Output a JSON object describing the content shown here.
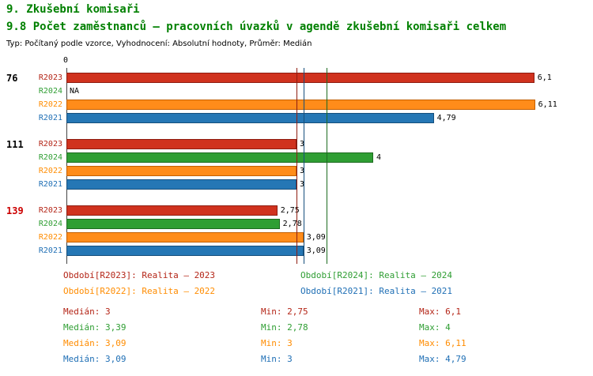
{
  "page": {
    "title": "9. Zkušební komisaři",
    "subtitle": "9.8 Počet zaměstnanců – pracovních úvazků v agendě zkušební komisaři celkem",
    "meta": "Typ: Počítaný podle vzorce, Vyhodnocení: Absolutní hodnoty, Průměr: Medián"
  },
  "colors": {
    "R2023": {
      "fill": "#d0321e",
      "border": "#8e1c10",
      "text": "#b42517"
    },
    "R2024": {
      "fill": "#2f9e33",
      "border": "#1d6b20",
      "text": "#2f9e33"
    },
    "R2022": {
      "fill": "#ff8c1a",
      "border": "#c45f00",
      "text": "#ff8c00"
    },
    "R2021": {
      "fill": "#2577b5",
      "border": "#164f7c",
      "text": "#1f6fb5"
    }
  },
  "chart_data": {
    "type": "bar",
    "orientation": "horizontal",
    "title": "9.8 Počet zaměstnanců – pracovních úvazků v agendě zkušební komisaři celkem",
    "xlim": [
      0,
      6.7
    ],
    "axis_zero_label": "0",
    "series_order": [
      "R2023",
      "R2024",
      "R2022",
      "R2021"
    ],
    "groups": [
      {
        "label": "76",
        "label_color": "#000000",
        "bars": [
          {
            "series": "R2023",
            "value": 6.1,
            "display": "6,1"
          },
          {
            "series": "R2024",
            "value": null,
            "display": "NA"
          },
          {
            "series": "R2022",
            "value": 6.11,
            "display": "6,11"
          },
          {
            "series": "R2021",
            "value": 4.79,
            "display": "4,79"
          }
        ]
      },
      {
        "label": "111",
        "label_color": "#000000",
        "bars": [
          {
            "series": "R2023",
            "value": 3,
            "display": "3"
          },
          {
            "series": "R2024",
            "value": 4,
            "display": "4"
          },
          {
            "series": "R2022",
            "value": 3,
            "display": "3"
          },
          {
            "series": "R2021",
            "value": 3,
            "display": "3"
          }
        ]
      },
      {
        "label": "139",
        "label_color": "#cc0000",
        "bars": [
          {
            "series": "R2023",
            "value": 2.75,
            "display": "2,75"
          },
          {
            "series": "R2024",
            "value": 2.78,
            "display": "2,78"
          },
          {
            "series": "R2022",
            "value": 3.09,
            "display": "3,09"
          },
          {
            "series": "R2021",
            "value": 3.09,
            "display": "3,09"
          }
        ]
      }
    ],
    "medians": [
      {
        "series": "R2023",
        "value": 3
      },
      {
        "series": "R2024",
        "value": 3.39
      },
      {
        "series": "R2022",
        "value": 3.09
      },
      {
        "series": "R2021",
        "value": 3.09
      }
    ],
    "legend": [
      {
        "series": "R2023",
        "label": "Období[R2023]: Realita – 2023",
        "col": 0,
        "row": 0
      },
      {
        "series": "R2024",
        "label": "Období[R2024]: Realita – 2024",
        "col": 1,
        "row": 0
      },
      {
        "series": "R2022",
        "label": "Období[R2022]: Realita – 2022",
        "col": 0,
        "row": 1
      },
      {
        "series": "R2021",
        "label": "Období[R2021]: Realita – 2021",
        "col": 1,
        "row": 1
      }
    ],
    "stats": [
      {
        "series": "R2023",
        "median": "Medián: 3",
        "min": "Min: 2,75",
        "max": "Max: 6,1"
      },
      {
        "series": "R2024",
        "median": "Medián: 3,39",
        "min": "Min: 2,78",
        "max": "Max: 4"
      },
      {
        "series": "R2022",
        "median": "Medián: 3,09",
        "min": "Min: 3",
        "max": "Max: 6,11"
      },
      {
        "series": "R2021",
        "median": "Medián: 3,09",
        "min": "Min: 3",
        "max": "Max: 4,79"
      }
    ]
  }
}
